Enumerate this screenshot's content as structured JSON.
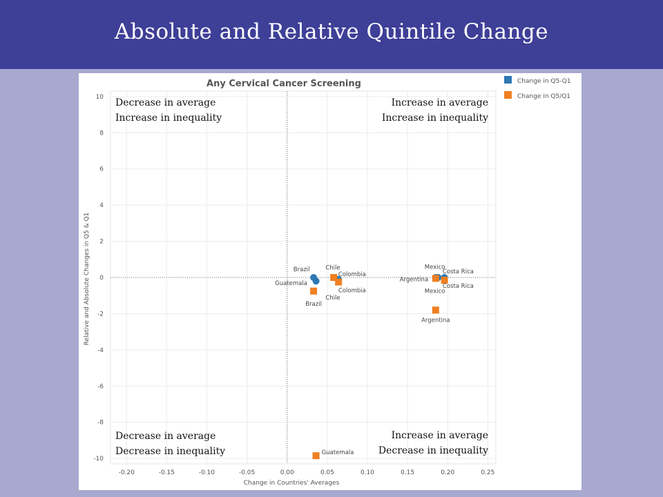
{
  "slide": {
    "title": "Absolute and Relative Quintile Change"
  },
  "colors": {
    "header": "#3e3f97",
    "background": "#a8a9cf",
    "q5_minus_q1": "#2e78b4",
    "q5_over_q1": "#f07f21"
  },
  "chart_data": {
    "type": "scatter",
    "title": "Any Cervical Cancer Screening",
    "xlabel": "Change in Countries' Averages",
    "ylabel": "Relative and Absolute Changes in Q5 & Q1",
    "xlim": [
      -0.22,
      0.26
    ],
    "ylim": [
      -10.3,
      10.3
    ],
    "xticks": [
      "-0.20",
      "-0.15",
      "-0.10",
      "-0.05",
      "0.00",
      "0.05",
      "0.10",
      "0.15",
      "0.20",
      "0.25"
    ],
    "yticks": [
      "10",
      "8",
      "6",
      "4",
      "2",
      "0",
      "-2",
      "-4",
      "-6",
      "-8",
      "-10"
    ],
    "grid": true,
    "legend": {
      "position": "top-right",
      "entries": [
        "Change in Q5-Q1",
        "Change in Q5/Q1"
      ]
    },
    "quadrant_labels": {
      "top_left": [
        "Decrease in average",
        "Increase in inequality"
      ],
      "top_right": [
        "Increase in average",
        "Increase in inequality"
      ],
      "bottom_left": [
        "Decrease in average",
        "Decrease in inequality"
      ],
      "bottom_right": [
        "Increase in average",
        "Decrease in inequality"
      ]
    },
    "series": [
      {
        "name": "Change in Q5-Q1",
        "marker": "circle",
        "color": "#2e78b4",
        "points": [
          {
            "label": "Brazil",
            "x": 0.033,
            "y": 0.0
          },
          {
            "label": "Guatemala",
            "x": 0.036,
            "y": -0.2
          },
          {
            "label": "Chile",
            "x": 0.058,
            "y": 0.0
          },
          {
            "label": "Colombia",
            "x": 0.064,
            "y": -0.1
          },
          {
            "label": "Mexico",
            "x": 0.185,
            "y": 0.0
          },
          {
            "label": "Argentina",
            "x": 0.188,
            "y": 0.0
          },
          {
            "label": "Costa Rica",
            "x": 0.196,
            "y": 0.0
          }
        ]
      },
      {
        "name": "Change in Q5/Q1",
        "marker": "square",
        "color": "#f07f21",
        "points": [
          {
            "label": "Brazil",
            "x": 0.033,
            "y": -0.75
          },
          {
            "label": "Guatemala",
            "x": 0.036,
            "y": -9.85
          },
          {
            "label": "Chile",
            "x": 0.058,
            "y": 0.0
          },
          {
            "label": "Colombia",
            "x": 0.064,
            "y": -0.25
          },
          {
            "label": "Mexico",
            "x": 0.185,
            "y": -0.05
          },
          {
            "label": "Argentina",
            "x": 0.185,
            "y": -1.8
          },
          {
            "label": "Costa Rica",
            "x": 0.196,
            "y": -0.15
          }
        ]
      }
    ],
    "point_labels": [
      {
        "text": "Brazil",
        "x": 0.018,
        "y": 0.45
      },
      {
        "text": "Guatemala",
        "x": 0.005,
        "y": -0.3
      },
      {
        "text": "Brazil",
        "x": 0.033,
        "y": -1.45
      },
      {
        "text": "Chile",
        "x": 0.057,
        "y": 0.55
      },
      {
        "text": "Chile",
        "x": 0.057,
        "y": -1.1
      },
      {
        "text": "Colombia",
        "x": 0.081,
        "y": 0.2
      },
      {
        "text": "Colombia",
        "x": 0.081,
        "y": -0.7
      },
      {
        "text": "Mexico",
        "x": 0.184,
        "y": 0.6
      },
      {
        "text": "Mexico",
        "x": 0.184,
        "y": -0.75
      },
      {
        "text": "Argentina",
        "x": 0.158,
        "y": -0.1
      },
      {
        "text": "Costa Rica",
        "x": 0.213,
        "y": 0.35
      },
      {
        "text": "Costa Rica",
        "x": 0.213,
        "y": -0.45
      },
      {
        "text": "Argentina",
        "x": 0.185,
        "y": -2.35
      },
      {
        "text": "Guatemala",
        "x": 0.063,
        "y": -9.65
      }
    ]
  }
}
